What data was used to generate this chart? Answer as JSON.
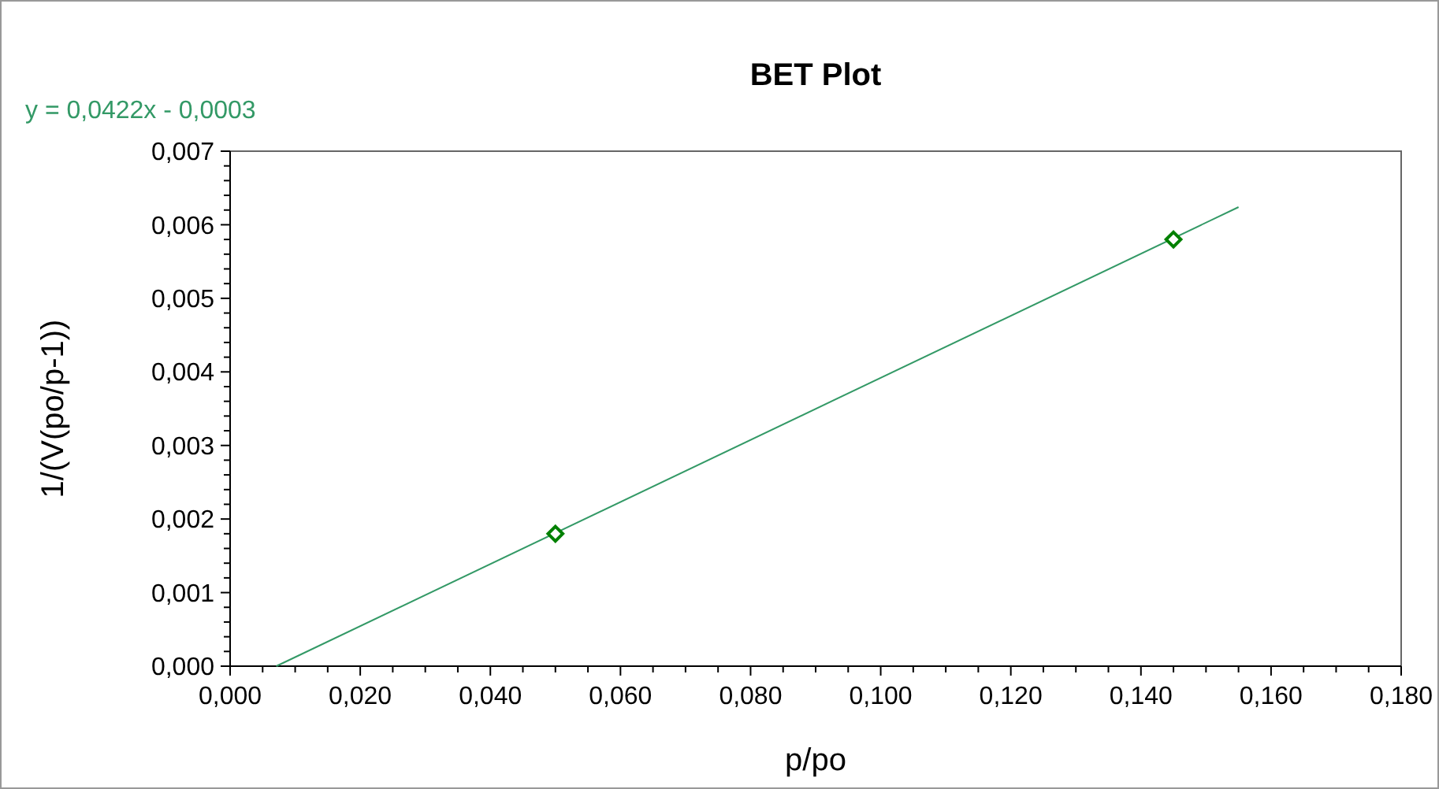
{
  "chart_data": {
    "type": "scatter",
    "title": "BET Plot",
    "xlabel": "p/po",
    "ylabel": "1/(V(po/p-1))",
    "annotations": [
      "y = 0,0422x - 0,0003"
    ],
    "xlim": [
      0,
      0.18
    ],
    "ylim": [
      0,
      0.007
    ],
    "xticks": [
      {
        "value": 0,
        "label": "0,000"
      },
      {
        "value": 0.005,
        "label": null
      },
      {
        "value": 0.01,
        "label": null
      },
      {
        "value": 0.015,
        "label": null
      },
      {
        "value": 0.02,
        "label": "0,020"
      },
      {
        "value": 0.025,
        "label": null
      },
      {
        "value": 0.03,
        "label": null
      },
      {
        "value": 0.035,
        "label": null
      },
      {
        "value": 0.04,
        "label": "0,040"
      },
      {
        "value": 0.045,
        "label": null
      },
      {
        "value": 0.05,
        "label": null
      },
      {
        "value": 0.055,
        "label": null
      },
      {
        "value": 0.06,
        "label": "0,060"
      },
      {
        "value": 0.065,
        "label": null
      },
      {
        "value": 0.07,
        "label": null
      },
      {
        "value": 0.075,
        "label": null
      },
      {
        "value": 0.08,
        "label": "0,080"
      },
      {
        "value": 0.085,
        "label": null
      },
      {
        "value": 0.09,
        "label": null
      },
      {
        "value": 0.095,
        "label": null
      },
      {
        "value": 0.1,
        "label": "0,100"
      },
      {
        "value": 0.105,
        "label": null
      },
      {
        "value": 0.11,
        "label": null
      },
      {
        "value": 0.115,
        "label": null
      },
      {
        "value": 0.12,
        "label": "0,120"
      },
      {
        "value": 0.125,
        "label": null
      },
      {
        "value": 0.13,
        "label": null
      },
      {
        "value": 0.135,
        "label": null
      },
      {
        "value": 0.14,
        "label": "0,140"
      },
      {
        "value": 0.145,
        "label": null
      },
      {
        "value": 0.15,
        "label": null
      },
      {
        "value": 0.155,
        "label": null
      },
      {
        "value": 0.16,
        "label": "0,160"
      },
      {
        "value": 0.165,
        "label": null
      },
      {
        "value": 0.17,
        "label": null
      },
      {
        "value": 0.175,
        "label": null
      },
      {
        "value": 0.18,
        "label": "0,180"
      }
    ],
    "yticks": [
      {
        "value": 0,
        "label": "0,000"
      },
      {
        "value": 0.0002,
        "label": null
      },
      {
        "value": 0.0004,
        "label": null
      },
      {
        "value": 0.0006,
        "label": null
      },
      {
        "value": 0.0008,
        "label": null
      },
      {
        "value": 0.001,
        "label": "0,001"
      },
      {
        "value": 0.0012,
        "label": null
      },
      {
        "value": 0.0014,
        "label": null
      },
      {
        "value": 0.0016,
        "label": null
      },
      {
        "value": 0.0018,
        "label": null
      },
      {
        "value": 0.002,
        "label": "0,002"
      },
      {
        "value": 0.0022,
        "label": null
      },
      {
        "value": 0.0024,
        "label": null
      },
      {
        "value": 0.0026,
        "label": null
      },
      {
        "value": 0.0028,
        "label": null
      },
      {
        "value": 0.003,
        "label": "0,003"
      },
      {
        "value": 0.0032,
        "label": null
      },
      {
        "value": 0.0034,
        "label": null
      },
      {
        "value": 0.0036,
        "label": null
      },
      {
        "value": 0.0038,
        "label": null
      },
      {
        "value": 0.004,
        "label": "0,004"
      },
      {
        "value": 0.0042,
        "label": null
      },
      {
        "value": 0.0044,
        "label": null
      },
      {
        "value": 0.0046,
        "label": null
      },
      {
        "value": 0.0048,
        "label": null
      },
      {
        "value": 0.005,
        "label": "0,005"
      },
      {
        "value": 0.0052,
        "label": null
      },
      {
        "value": 0.0054,
        "label": null
      },
      {
        "value": 0.0056,
        "label": null
      },
      {
        "value": 0.0058,
        "label": null
      },
      {
        "value": 0.006,
        "label": "0,006"
      },
      {
        "value": 0.0062,
        "label": null
      },
      {
        "value": 0.0064,
        "label": null
      },
      {
        "value": 0.0066,
        "label": null
      },
      {
        "value": 0.0068,
        "label": null
      },
      {
        "value": 0.007,
        "label": "0,007"
      }
    ],
    "grid": false,
    "series": [
      {
        "color": "#008000",
        "marker": "diamond",
        "x": [
          0.05,
          0.145
        ],
        "values": [
          0.0018,
          0.0058
        ]
      },
      {
        "type": "line",
        "color": "#339966",
        "marker": "none",
        "line_style": "solid",
        "x": [
          0.0071,
          0.155
        ],
        "values": [
          0,
          0.00624
        ]
      }
    ]
  }
}
